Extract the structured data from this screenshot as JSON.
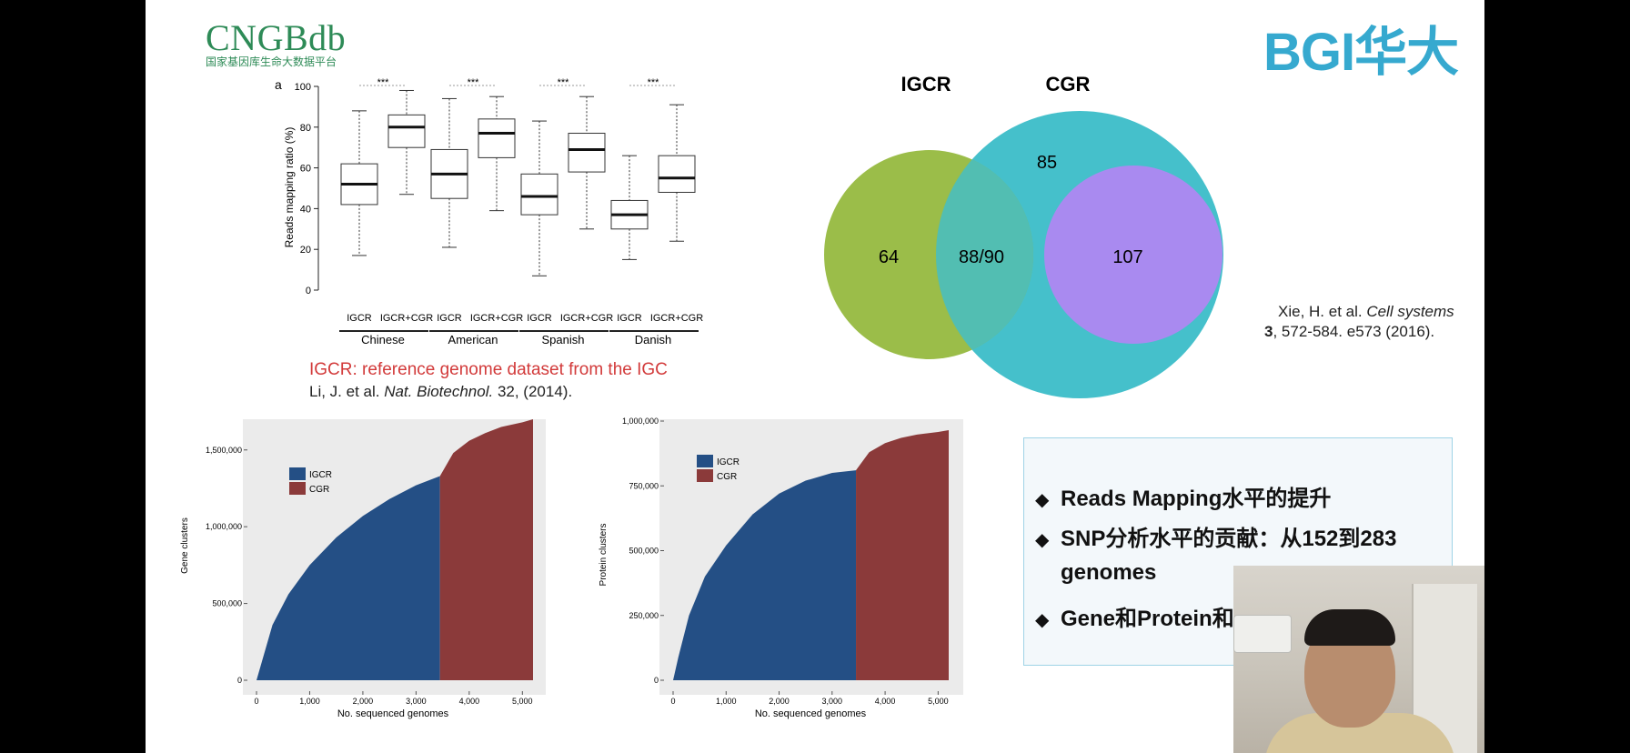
{
  "logo_cngb": {
    "title": "CNGBdb",
    "subtitle": "国家基因库生命大数据平台"
  },
  "logo_bgi": {
    "text": "BGI华大"
  },
  "boxplot": {
    "panel_label": "a",
    "ylabel": "Reads mapping ratio (%)",
    "yticks": [
      "0",
      "20",
      "40",
      "60",
      "80",
      "100"
    ],
    "groups": [
      "Chinese",
      "American",
      "Spanish",
      "Danish"
    ],
    "box_labels": [
      "IGCR",
      "IGCR+CGR"
    ],
    "significance": "***"
  },
  "chart_data": [
    {
      "type": "box",
      "title": "Reads mapping ratio (%)",
      "ylabel": "Reads mapping ratio (%)",
      "ylim": [
        0,
        100
      ],
      "groups": [
        "Chinese",
        "American",
        "Spanish",
        "Danish"
      ],
      "series": [
        {
          "name": "IGCR",
          "boxes": [
            {
              "min": 17,
              "q1": 42,
              "median": 52,
              "q3": 62,
              "max": 88
            },
            {
              "min": 21,
              "q1": 45,
              "median": 57,
              "q3": 69,
              "max": 94
            },
            {
              "min": 7,
              "q1": 37,
              "median": 46,
              "q3": 57,
              "max": 83
            },
            {
              "min": 15,
              "q1": 30,
              "median": 37,
              "q3": 44,
              "max": 66
            }
          ]
        },
        {
          "name": "IGCR+CGR",
          "boxes": [
            {
              "min": 47,
              "q1": 70,
              "median": 80,
              "q3": 86,
              "max": 98
            },
            {
              "min": 39,
              "q1": 65,
              "median": 77,
              "q3": 84,
              "max": 95
            },
            {
              "min": 30,
              "q1": 58,
              "median": 69,
              "q3": 77,
              "max": 95
            },
            {
              "min": 24,
              "q1": 48,
              "median": 55,
              "q3": 66,
              "max": 91
            }
          ]
        }
      ]
    },
    {
      "type": "venn",
      "sets": [
        "IGCR",
        "CGR"
      ],
      "regions": {
        "igcr_only": "64",
        "overlap": "88/90",
        "cgr_only": "85",
        "inner": "107"
      }
    },
    {
      "type": "area",
      "ylabel": "Gene clusters",
      "xlabel": "No. sequenced genomes",
      "xlim": [
        0,
        5200
      ],
      "ylim": [
        0,
        1700000
      ],
      "xticks": [
        "0",
        "1,000",
        "2,000",
        "3,000",
        "4,000",
        "5,000"
      ],
      "yticks": [
        "0",
        "500,000",
        "1,000,000",
        "1,500,000"
      ],
      "ytick_values": [
        0,
        500000,
        1000000,
        1500000
      ],
      "series": [
        {
          "name": "IGCR",
          "x": [
            0,
            100,
            300,
            600,
            1000,
            1500,
            2000,
            2500,
            3000,
            3450
          ],
          "y": [
            0,
            120000,
            360000,
            560000,
            750000,
            930000,
            1070000,
            1180000,
            1270000,
            1330000
          ]
        },
        {
          "name": "CGR",
          "x": [
            3450,
            3700,
            4000,
            4300,
            4600,
            5000,
            5200
          ],
          "y": [
            1330000,
            1480000,
            1560000,
            1610000,
            1650000,
            1680000,
            1700000
          ]
        }
      ]
    },
    {
      "type": "area",
      "ylabel": "Protein clusters",
      "xlabel": "No. sequenced genomes",
      "xlim": [
        0,
        5200
      ],
      "ylim": [
        0,
        1000000
      ],
      "xticks": [
        "0",
        "1,000",
        "2,000",
        "3,000",
        "4,000",
        "5,000"
      ],
      "yticks": [
        "0",
        "250,000",
        "500,000",
        "750,000",
        "1,000,000"
      ],
      "ytick_values": [
        0,
        250000,
        500000,
        750000,
        1000000
      ],
      "series": [
        {
          "name": "IGCR",
          "x": [
            0,
            100,
            300,
            600,
            1000,
            1500,
            2000,
            2500,
            3000,
            3450
          ],
          "y": [
            0,
            90000,
            250000,
            400000,
            520000,
            640000,
            720000,
            770000,
            800000,
            810000
          ]
        },
        {
          "name": "CGR",
          "x": [
            3450,
            3700,
            4000,
            4300,
            4600,
            5000,
            5200
          ],
          "y": [
            810000,
            880000,
            915000,
            935000,
            948000,
            958000,
            965000
          ]
        }
      ]
    }
  ],
  "area_legend": [
    "IGCR",
    "CGR"
  ],
  "colors": {
    "igcr_area": "#244f85",
    "cgr_area": "#8b3a3a",
    "venn_igcr": "#93b73a",
    "venn_cgr": "#45c0cb",
    "venn_inner": "#a98af0",
    "plot_bg": "#ebebeb"
  },
  "notes": {
    "igcr_def": "IGCR: reference genome dataset from the IGC",
    "li_authors": "Li, J. et al. ",
    "li_journal": "Nat. Biotechnol.",
    "li_rest": " 32, (2014).",
    "xie_authors": "Xie, H. et al. ",
    "xie_journal": "Cell systems",
    "xie_vol": "3",
    "xie_rest": ", 572-584. e573 (2016)."
  },
  "bullets": {
    "diamond": "◆",
    "b1": "Reads Mapping水平的提升",
    "b2a": "SNP分析水平的贡献：从152到283",
    "b2b": "genomes",
    "b3": "Gene和Protein和"
  }
}
